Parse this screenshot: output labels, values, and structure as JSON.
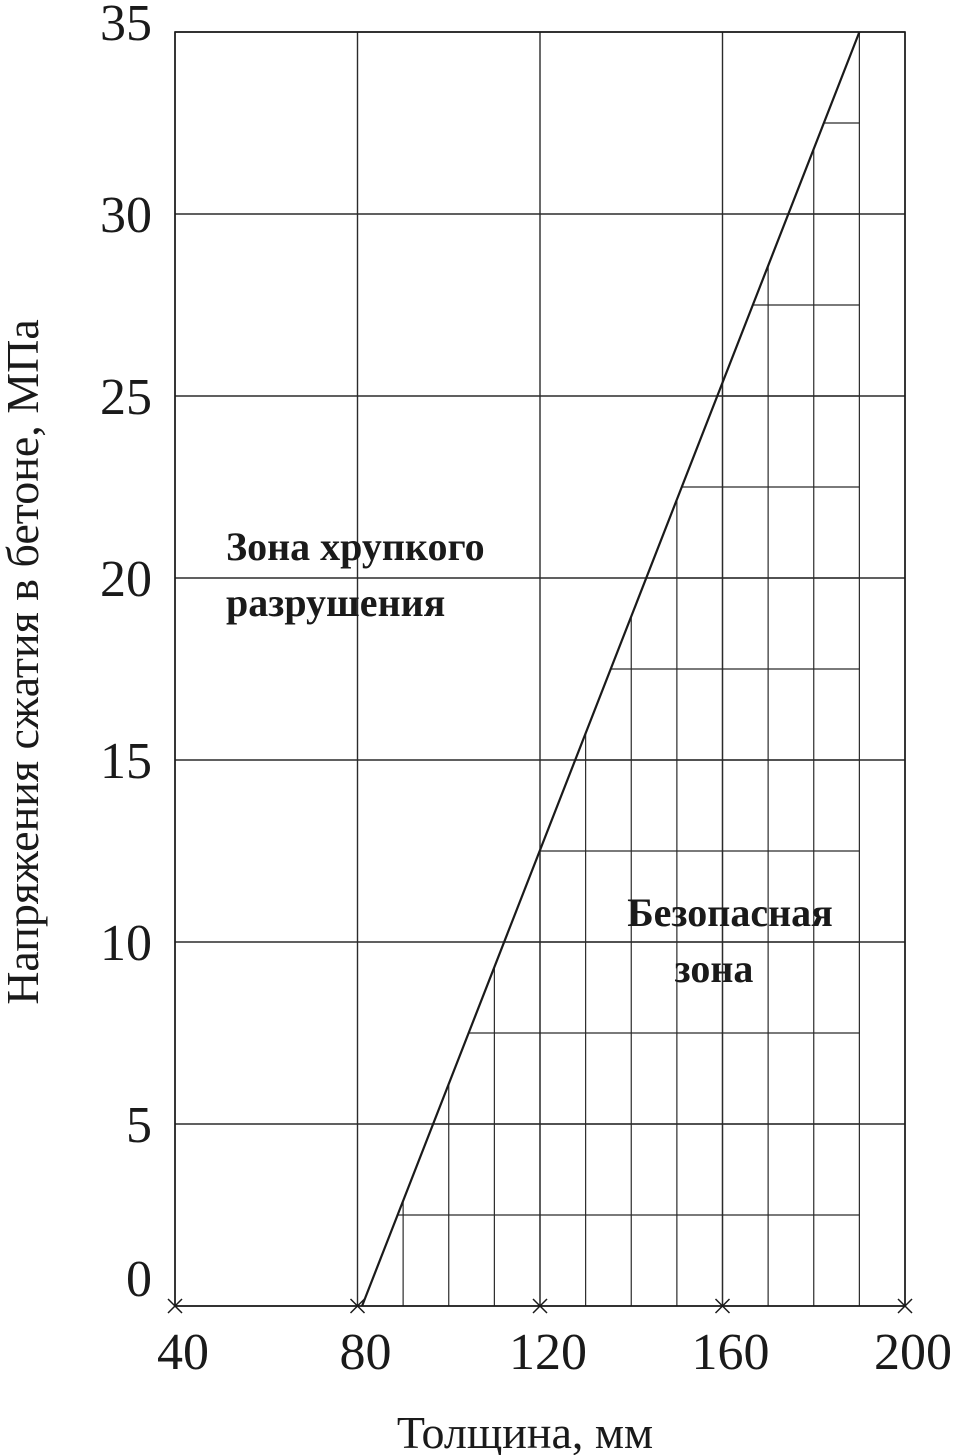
{
  "chart_data": {
    "type": "line",
    "xlabel": "Толщина, мм",
    "ylabel": "Напряжения сжатия в бетоне, МПа",
    "xlim": [
      40,
      200
    ],
    "ylim": [
      0,
      35
    ],
    "x_ticks": [
      40,
      80,
      120,
      160,
      200
    ],
    "y_ticks": [
      0,
      5,
      10,
      15,
      20,
      25,
      30,
      35
    ],
    "grid": true,
    "series": [
      {
        "x": [
          81,
          190
        ],
        "y": [
          0,
          35
        ]
      }
    ],
    "hatch": {
      "x_step": 10,
      "y_step": 2.5
    },
    "annotations": [
      {
        "lines": [
          "Зона хрупкого",
          "разрушения"
        ]
      },
      {
        "lines": [
          "Безопасная",
          "зона"
        ]
      }
    ]
  }
}
